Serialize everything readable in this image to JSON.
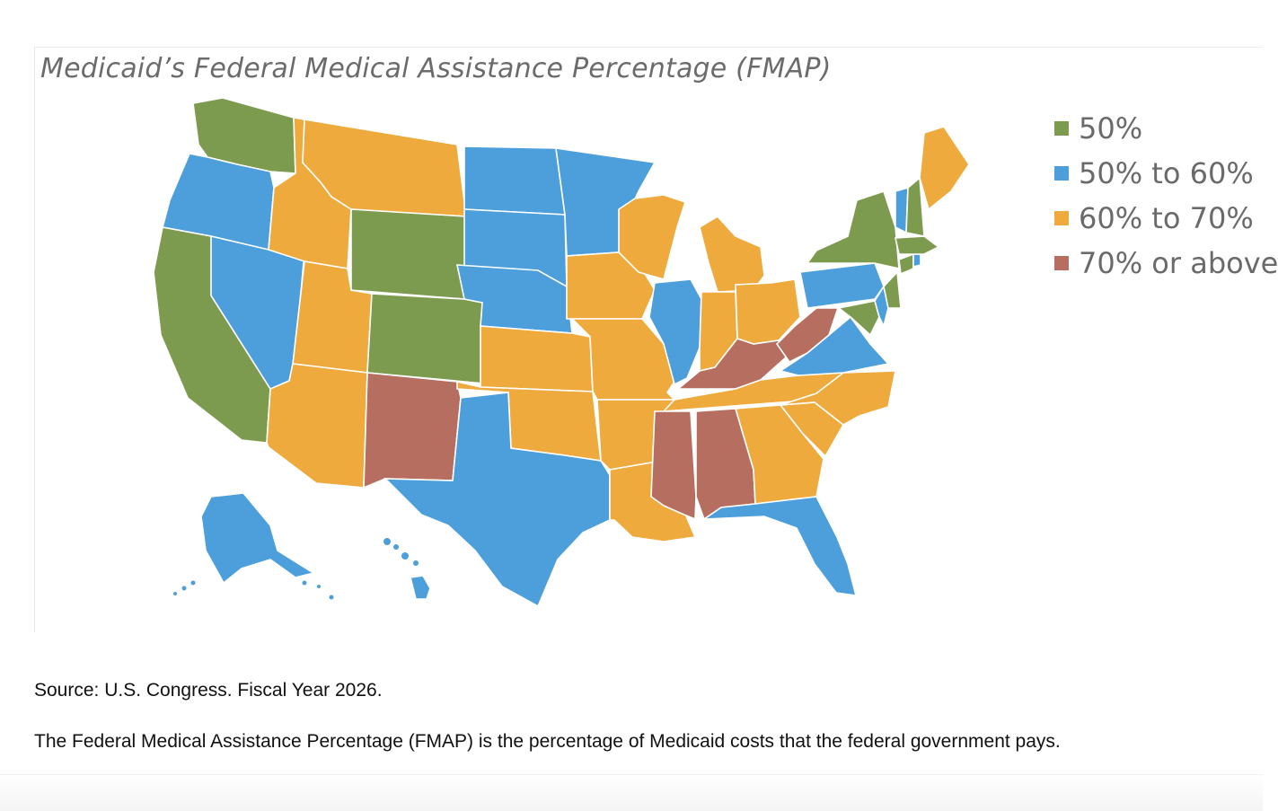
{
  "map": {
    "title": "Medicaid’s Federal Medical Assistance Percentage (FMAP)",
    "legend": [
      {
        "id": "c50",
        "label": "50%",
        "color": "#7d9b4f"
      },
      {
        "id": "c5060",
        "label": "50% to 60%",
        "color": "#4d9fdb"
      },
      {
        "id": "c6070",
        "label": "60% to 70%",
        "color": "#eeaa3c"
      },
      {
        "id": "c70",
        "label": "70% or above",
        "color": "#b66e60"
      }
    ],
    "states": [
      {
        "name": "Washington",
        "category": "c50"
      },
      {
        "name": "Oregon",
        "category": "c5060"
      },
      {
        "name": "California",
        "category": "c50"
      },
      {
        "name": "Nevada",
        "category": "c5060"
      },
      {
        "name": "Idaho",
        "category": "c6070"
      },
      {
        "name": "Montana",
        "category": "c6070"
      },
      {
        "name": "Wyoming",
        "category": "c50"
      },
      {
        "name": "Utah",
        "category": "c6070"
      },
      {
        "name": "Colorado",
        "category": "c50"
      },
      {
        "name": "Arizona",
        "category": "c6070"
      },
      {
        "name": "New Mexico",
        "category": "c70"
      },
      {
        "name": "North Dakota",
        "category": "c5060"
      },
      {
        "name": "South Dakota",
        "category": "c5060"
      },
      {
        "name": "Nebraska",
        "category": "c5060"
      },
      {
        "name": "Kansas",
        "category": "c6070"
      },
      {
        "name": "Oklahoma",
        "category": "c6070"
      },
      {
        "name": "Texas",
        "category": "c5060"
      },
      {
        "name": "Minnesota",
        "category": "c5060"
      },
      {
        "name": "Iowa",
        "category": "c6070"
      },
      {
        "name": "Missouri",
        "category": "c6070"
      },
      {
        "name": "Arkansas",
        "category": "c6070"
      },
      {
        "name": "Louisiana",
        "category": "c6070"
      },
      {
        "name": "Wisconsin",
        "category": "c6070"
      },
      {
        "name": "Illinois",
        "category": "c5060"
      },
      {
        "name": "Michigan",
        "category": "c6070"
      },
      {
        "name": "Indiana",
        "category": "c6070"
      },
      {
        "name": "Ohio",
        "category": "c6070"
      },
      {
        "name": "Kentucky",
        "category": "c70"
      },
      {
        "name": "Tennessee",
        "category": "c6070"
      },
      {
        "name": "Mississippi",
        "category": "c70"
      },
      {
        "name": "Alabama",
        "category": "c70"
      },
      {
        "name": "Georgia",
        "category": "c6070"
      },
      {
        "name": "Florida",
        "category": "c5060"
      },
      {
        "name": "South Carolina",
        "category": "c6070"
      },
      {
        "name": "North Carolina",
        "category": "c6070"
      },
      {
        "name": "Virginia",
        "category": "c5060"
      },
      {
        "name": "West Virginia",
        "category": "c70"
      },
      {
        "name": "Pennsylvania",
        "category": "c5060"
      },
      {
        "name": "New York",
        "category": "c50"
      },
      {
        "name": "Maryland",
        "category": "c50"
      },
      {
        "name": "Delaware",
        "category": "c5060"
      },
      {
        "name": "New Jersey",
        "category": "c50"
      },
      {
        "name": "Connecticut",
        "category": "c50"
      },
      {
        "name": "Rhode Island",
        "category": "c5060"
      },
      {
        "name": "Massachusetts",
        "category": "c50"
      },
      {
        "name": "Vermont",
        "category": "c5060"
      },
      {
        "name": "New Hampshire",
        "category": "c50"
      },
      {
        "name": "Maine",
        "category": "c6070"
      },
      {
        "name": "Alaska",
        "category": "c5060"
      },
      {
        "name": "Hawaii",
        "category": "c5060"
      }
    ]
  },
  "footer": {
    "source": "Source: U.S. Congress. Fiscal Year 2026.",
    "description": "The Federal Medical Assistance Percentage (FMAP) is the percentage of Medicaid costs that the federal government pays."
  }
}
